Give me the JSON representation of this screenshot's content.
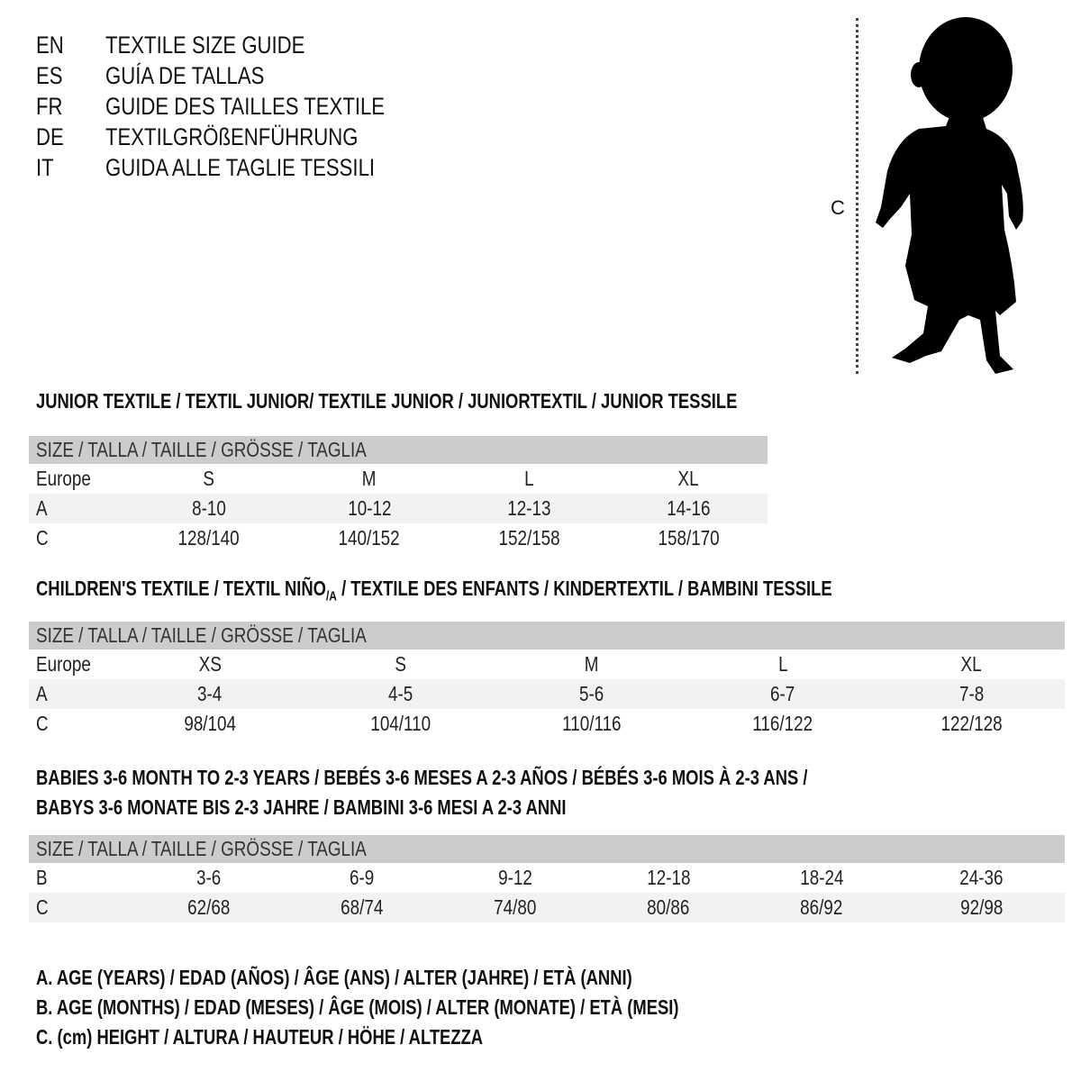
{
  "titles": [
    {
      "code": "EN",
      "text": "TEXTILE SIZE GUIDE"
    },
    {
      "code": "ES",
      "text": "GUÍA DE TALLAS"
    },
    {
      "code": "FR",
      "text": "GUIDE DES TAILLES TEXTILE"
    },
    {
      "code": "DE",
      "text": "TEXTILGRÖßENFÜHRUNG"
    },
    {
      "code": "IT",
      "text": "GUIDA ALLE TAGLIE TESSILI"
    }
  ],
  "figure": {
    "measure_label": "C",
    "icon": "child-silhouette-icon"
  },
  "header_label": "SIZE / TALLA / TAILLE / GRÖSSE / TAGLIA",
  "junior": {
    "title": "JUNIOR TEXTILE / TEXTIL JUNIOR/ TEXTILE JUNIOR / JUNIORTEXTIL / JUNIOR TESSILE",
    "rows": [
      {
        "label": "Europe",
        "values": [
          "S",
          "M",
          "L",
          "XL"
        ]
      },
      {
        "label": "A",
        "values": [
          "8-10",
          "10-12",
          "12-13",
          "14-16"
        ]
      },
      {
        "label": "C",
        "values": [
          "128/140",
          "140/152",
          "152/158",
          "158/170"
        ]
      }
    ]
  },
  "children": {
    "title_a": "CHILDREN'S TEXTILE / TEXTIL NIÑO",
    "title_sub": "/A",
    "title_b": " / TEXTILE DES ENFANTS / KINDERTEXTIL / BAMBINI TESSILE",
    "rows": [
      {
        "label": "Europe",
        "values": [
          "XS",
          "S",
          "M",
          "L",
          "XL"
        ]
      },
      {
        "label": "A",
        "values": [
          "3-4",
          "4-5",
          "5-6",
          "6-7",
          "7-8"
        ]
      },
      {
        "label": "C",
        "values": [
          "98/104",
          "104/110",
          "110/116",
          "116/122",
          "122/128"
        ]
      }
    ]
  },
  "babies": {
    "title_line1": "BABIES 3-6 MONTH TO 2-3 YEARS / BEBÉS 3-6 MESES A 2-3 AÑOS / BÉBÉS 3-6 MOIS À 2-3 ANS /",
    "title_line2": "BABYS 3-6 MONATE BIS 2-3 JAHRE / BAMBINI 3-6 MESI A 2-3 ANNI",
    "rows": [
      {
        "label": "B",
        "values": [
          "3-6",
          "6-9",
          "9-12",
          "12-18",
          "18-24",
          "24-36"
        ]
      },
      {
        "label": "C",
        "values": [
          "62/68",
          "68/74",
          "74/80",
          "80/86",
          "86/92",
          "92/98"
        ]
      }
    ]
  },
  "legend": [
    "A. AGE (YEARS) / EDAD (AÑOS) / ÂGE (ANS) / ALTER (JAHRE) / ETÀ (ANNI)",
    "B. AGE (MONTHS) / EDAD (MESES) / ÂGE (MOIS) / ALTER (MONATE) / ETÀ (MESI)",
    "C. (cm) HEIGHT / ALTURA / HAUTEUR / HÖHE / ALTEZZA"
  ],
  "colors": {
    "header_bg": "#cccccc",
    "alt_row_bg": "#f2f2f2"
  }
}
